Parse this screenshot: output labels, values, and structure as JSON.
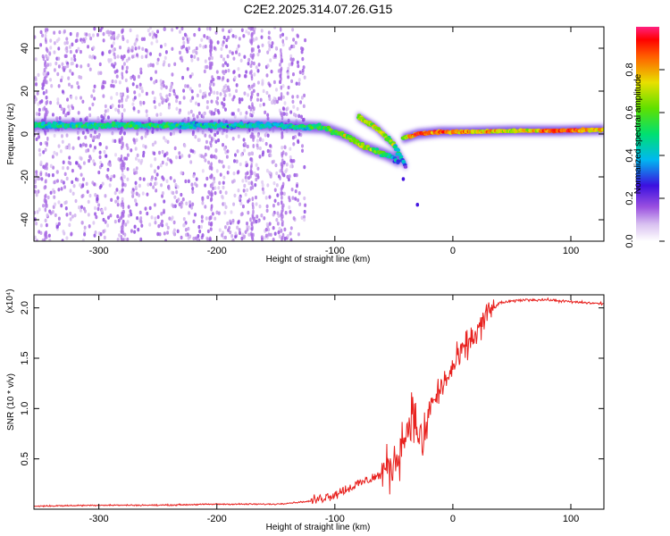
{
  "title": "C2E2.2025.314.07.26.G15",
  "chart_data": [
    {
      "type": "heatmap",
      "xlabel": "Height of straight line (km)",
      "ylabel": "Frequency (Hz)",
      "xlim": [
        -355,
        128
      ],
      "ylim": [
        -50,
        50
      ],
      "x_ticks": [
        -300,
        -200,
        -100,
        0,
        100
      ],
      "y_ticks": [
        -40,
        -20,
        0,
        20,
        40
      ],
      "colorbar": {
        "label": "Normalized spectral amplitude",
        "range": [
          0,
          1
        ],
        "ticks": [
          "0.0",
          "0.2",
          "0.4",
          "0.6",
          "0.8"
        ]
      },
      "main_band": [
        {
          "x": -355,
          "freq": 4,
          "amp": 0.5
        },
        {
          "x": -300,
          "freq": 4,
          "amp": 0.5
        },
        {
          "x": -250,
          "freq": 4,
          "amp": 0.5
        },
        {
          "x": -200,
          "freq": 4,
          "amp": 0.45
        },
        {
          "x": -150,
          "freq": 4,
          "amp": 0.45
        },
        {
          "x": -110,
          "freq": 3,
          "amp": 0.55
        },
        {
          "x": -90,
          "freq": -1,
          "amp": 0.65
        },
        {
          "x": -75,
          "freq": -6,
          "amp": 0.7
        },
        {
          "x": -55,
          "freq": -10,
          "amp": 0.55
        },
        {
          "x": -45,
          "freq": -13,
          "amp": 0.3
        }
      ],
      "upper_branch": [
        {
          "x": -80,
          "freq": 8,
          "amp": 0.65
        },
        {
          "x": -65,
          "freq": 3,
          "amp": 0.75
        },
        {
          "x": -50,
          "freq": -5,
          "amp": 0.6
        },
        {
          "x": -40,
          "freq": -15,
          "amp": 0.3
        }
      ],
      "post_branch": [
        {
          "x": -42,
          "freq": -2,
          "amp": 0.6
        },
        {
          "x": -30,
          "freq": 0,
          "amp": 0.9
        },
        {
          "x": -10,
          "freq": 1,
          "amp": 0.85
        },
        {
          "x": 10,
          "freq": 1,
          "amp": 0.8
        },
        {
          "x": 50,
          "freq": 1.5,
          "amp": 0.7
        },
        {
          "x": 90,
          "freq": 1.5,
          "amp": 0.9
        },
        {
          "x": 128,
          "freq": 2,
          "amp": 0.75
        }
      ],
      "scatter_until_x": -140
    },
    {
      "type": "line",
      "xlabel": "Height of straight line (km)",
      "ylabel": "SNR (10 * v/v)",
      "y_multiplier": "(x10⁴)",
      "xlim": [
        -355,
        128
      ],
      "ylim": [
        0,
        2.13
      ],
      "x_ticks": [
        -300,
        -200,
        -100,
        0,
        100
      ],
      "y_ticks": [
        0.5,
        1.0,
        1.5,
        2.0
      ],
      "y_tick_labels": [
        "0.5",
        "1.0",
        "1.5",
        "2.0"
      ],
      "series": [
        {
          "name": "SNR",
          "color": "#e8211e",
          "x": [
            -355,
            -300,
            -250,
            -200,
            -150,
            -120,
            -100,
            -80,
            -60,
            -50,
            -40,
            -35,
            -30,
            -25,
            -20,
            -10,
            0,
            10,
            20,
            30,
            40,
            60,
            80,
            100,
            128
          ],
          "y": [
            0.03,
            0.04,
            0.04,
            0.05,
            0.05,
            0.08,
            0.15,
            0.25,
            0.35,
            0.45,
            0.75,
            0.95,
            0.8,
            0.6,
            1.0,
            1.2,
            1.4,
            1.6,
            1.75,
            1.95,
            2.05,
            2.08,
            2.08,
            2.06,
            2.04
          ]
        }
      ]
    }
  ]
}
